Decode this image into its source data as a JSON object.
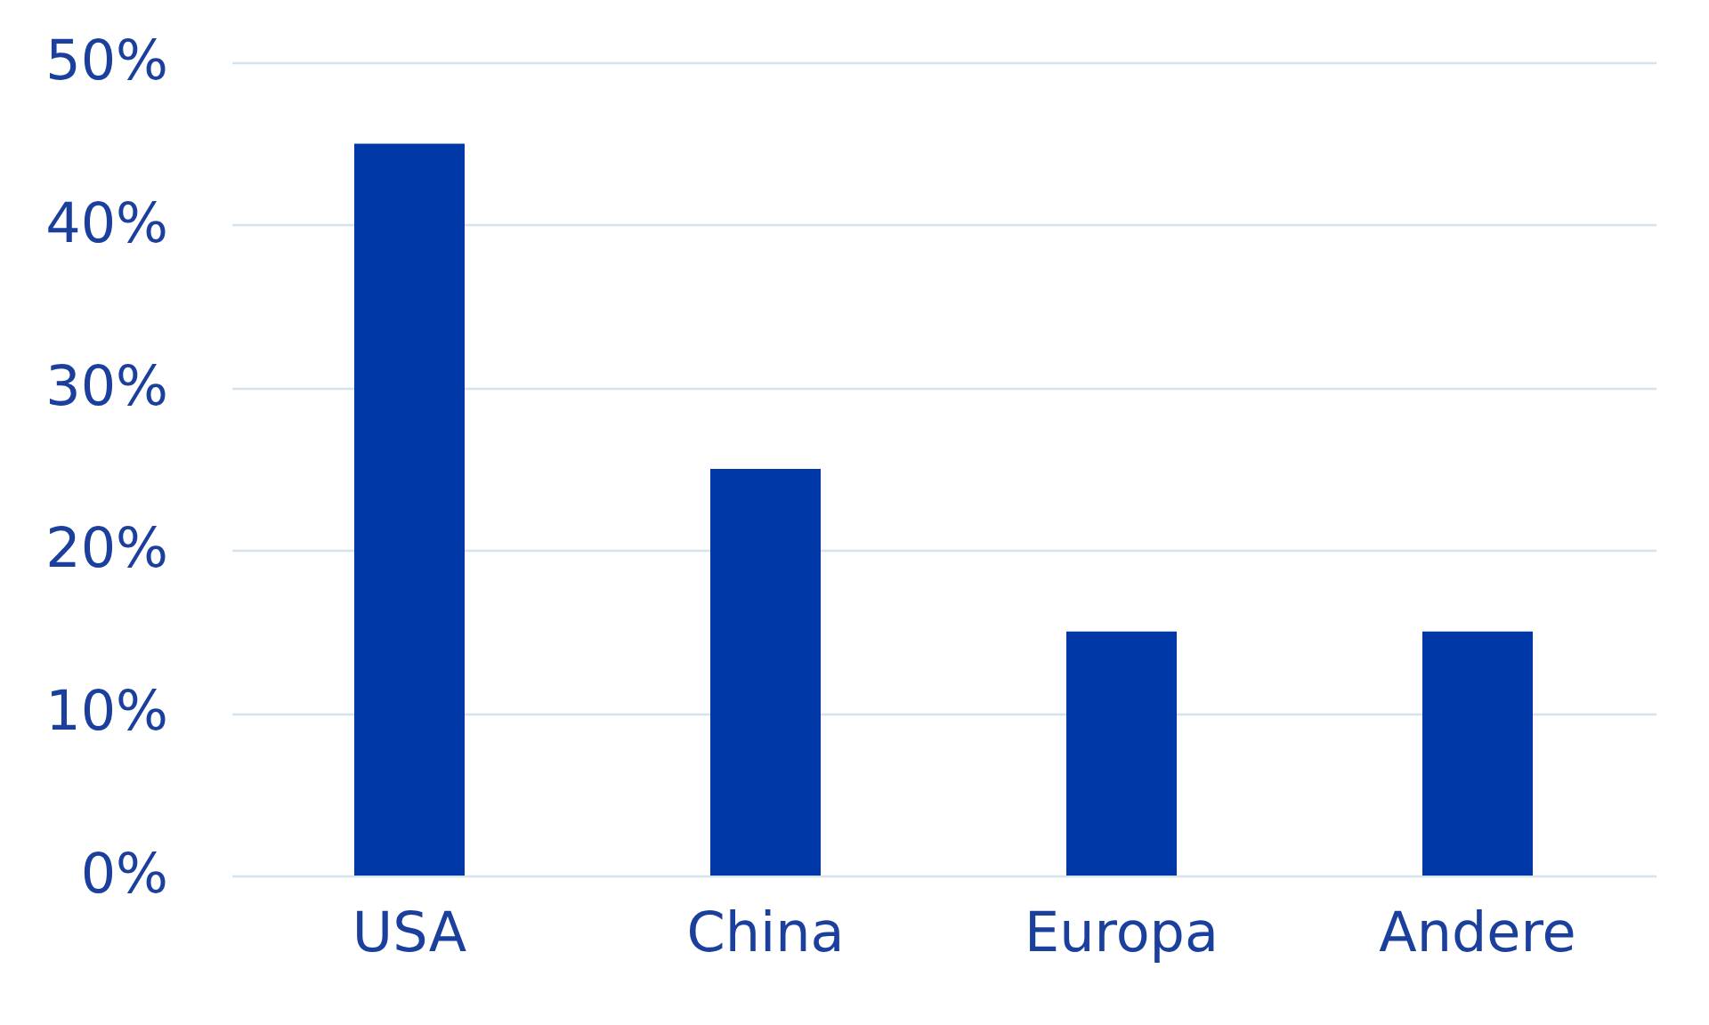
{
  "chart_data": {
    "type": "bar",
    "categories": [
      "USA",
      "China",
      "Europa",
      "Andere"
    ],
    "values": [
      45,
      25,
      15,
      15
    ],
    "color": "#0038a8",
    "ylim": [
      0,
      50
    ],
    "yticks": [
      {
        "value": 0,
        "label": "0%"
      },
      {
        "value": 10,
        "label": "10%"
      },
      {
        "value": 20,
        "label": "20%"
      },
      {
        "value": 30,
        "label": "30%"
      },
      {
        "value": 40,
        "label": "40%"
      },
      {
        "value": 50,
        "label": "50%"
      }
    ],
    "grid": "y"
  }
}
